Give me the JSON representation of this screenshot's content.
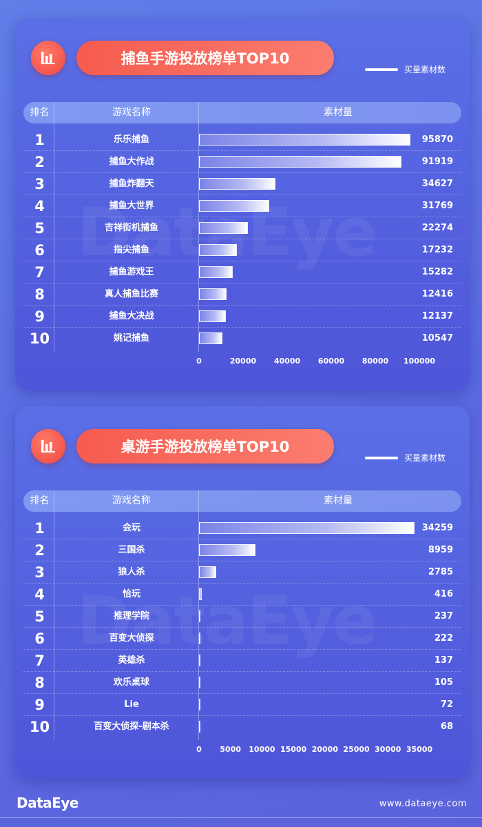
{
  "footer": {
    "brand": "DataEye",
    "url": "www.dataeye.com"
  },
  "watermark": "DataEye",
  "legend_label": "买量素材数",
  "header": {
    "rank": "排名",
    "name": "游戏名称",
    "value": "素材量"
  },
  "colors": {
    "title_pill": "#f65b4f",
    "background": "#5a6ae0",
    "bar_end": "#ffffff"
  },
  "chart_data": [
    {
      "type": "bar",
      "orientation": "horizontal",
      "title": "捕鱼手游投放榜单TOP10",
      "legend": "买量素材数",
      "ylabel": "游戏名称",
      "xlabel": "素材量",
      "ranks": [
        "1",
        "2",
        "3",
        "4",
        "5",
        "6",
        "7",
        "8",
        "9",
        "10"
      ],
      "categories": [
        "乐乐捕鱼",
        "捕鱼大作战",
        "捕鱼炸翻天",
        "捕鱼大世界",
        "吉祥街机捕鱼",
        "指尖捕鱼",
        "捕鱼游戏王",
        "真人捕鱼比赛",
        "捕鱼大决战",
        "姚记捕鱼"
      ],
      "values": [
        95870,
        91919,
        34627,
        31769,
        22274,
        17232,
        15282,
        12416,
        12137,
        10547
      ],
      "xlim": [
        0,
        100000
      ],
      "ticks": [
        0,
        20000,
        40000,
        60000,
        80000,
        100000
      ]
    },
    {
      "type": "bar",
      "orientation": "horizontal",
      "title": "桌游手游投放榜单TOP10",
      "legend": "买量素材数",
      "ylabel": "游戏名称",
      "xlabel": "素材量",
      "ranks": [
        "1",
        "2",
        "3",
        "4",
        "5",
        "6",
        "7",
        "8",
        "9",
        "10"
      ],
      "categories": [
        "会玩",
        "三国杀",
        "狼人杀",
        "恰玩",
        "推理学院",
        "百变大侦探",
        "英雄杀",
        "欢乐桌球",
        "Lie",
        "百变大侦探-剧本杀"
      ],
      "values": [
        34259,
        8959,
        2785,
        416,
        237,
        222,
        137,
        105,
        72,
        68
      ],
      "xlim": [
        0,
        35000
      ],
      "ticks": [
        0,
        5000,
        10000,
        15000,
        20000,
        25000,
        30000,
        35000
      ]
    }
  ]
}
